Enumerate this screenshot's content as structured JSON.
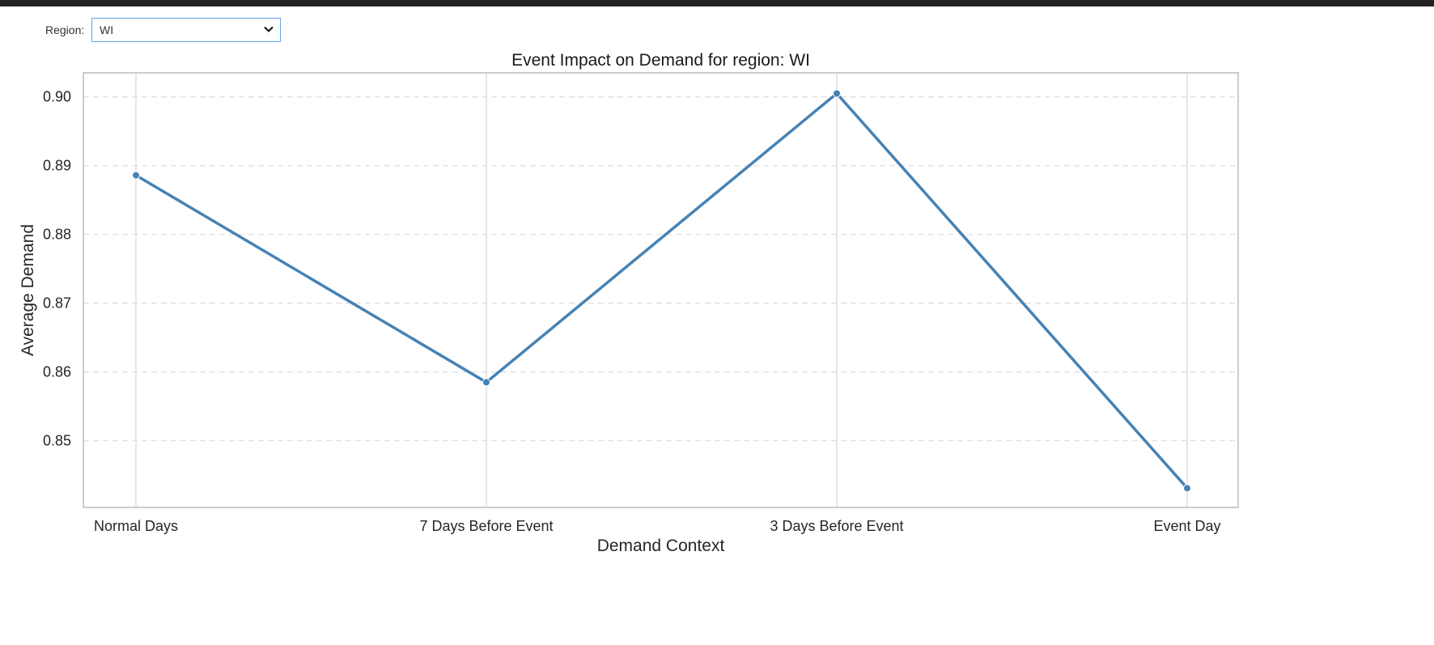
{
  "filter": {
    "label": "Region:",
    "selected": "WI"
  },
  "colors": {
    "line": "#4682b4",
    "grid": "#dddddd",
    "frame": "#cccccc"
  },
  "chart_data": {
    "type": "line",
    "title": "Event Impact on Demand for region: WI",
    "xlabel": "Demand Context",
    "ylabel": "Average Demand",
    "categories": [
      "Normal Days",
      "7 Days Before Event",
      "3 Days Before Event",
      "Event Day"
    ],
    "series": [
      {
        "values": [
          0.8886,
          0.8585,
          0.9005,
          0.8431
        ]
      }
    ],
    "ylim": [
      0.8403,
      0.9035
    ],
    "yticks": [
      0.85,
      0.86,
      0.87,
      0.88,
      0.89,
      0.9
    ],
    "ytick_labels": [
      "0.85",
      "0.86",
      "0.87",
      "0.88",
      "0.89",
      "0.90"
    ],
    "grid": "horizontal dashed, vertical solid at categories",
    "legend": "none"
  }
}
